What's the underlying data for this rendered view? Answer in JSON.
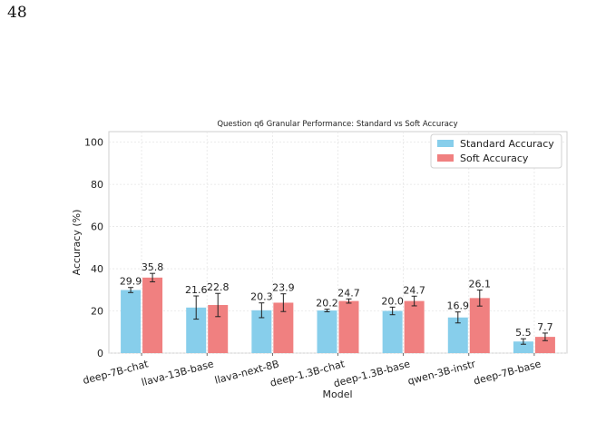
{
  "page": {
    "number": "48"
  },
  "chart_data": {
    "type": "bar",
    "title": "Question q6 Granular Performance: Standard vs Soft Accuracy",
    "xlabel": "Model",
    "ylabel": "Accuracy (%)",
    "ylim": [
      0,
      105
    ],
    "yticks": [
      0,
      20,
      40,
      60,
      80,
      100
    ],
    "grid": true,
    "legend_position": "top-right",
    "categories": [
      "deep-7B-chat",
      "llava-13B-base",
      "llava-next-8B",
      "deep-1.3B-chat",
      "deep-1.3B-base",
      "qwen-3B-instr",
      "deep-7B-base"
    ],
    "series": [
      {
        "name": "Standard Accuracy",
        "color": "#87ceeb",
        "values": [
          29.9,
          21.6,
          20.3,
          20.2,
          20.0,
          16.9,
          5.5
        ],
        "labels": [
          "29.9",
          "21.6",
          "20.3",
          "20.2",
          "20.0",
          "16.9",
          "5.5"
        ],
        "errors": [
          1.2,
          5.5,
          3.5,
          0.6,
          1.8,
          2.6,
          1.3
        ]
      },
      {
        "name": "Soft Accuracy",
        "color": "#f08080",
        "values": [
          35.8,
          22.8,
          23.9,
          24.7,
          24.7,
          26.1,
          7.7
        ],
        "labels": [
          "35.8",
          "22.8",
          "23.9",
          "24.7",
          "24.7",
          "26.1",
          "7.7"
        ],
        "errors": [
          2.0,
          5.5,
          4.2,
          1.0,
          2.3,
          3.8,
          1.8
        ]
      }
    ]
  }
}
